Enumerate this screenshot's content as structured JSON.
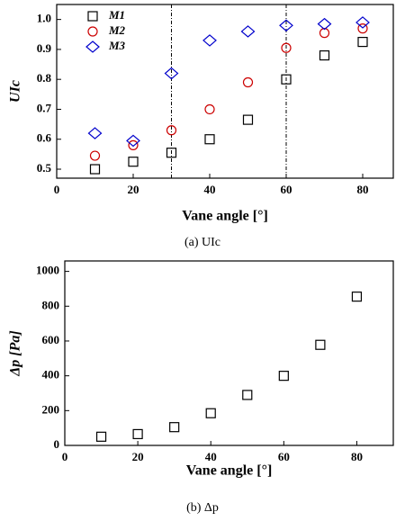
{
  "chart_data": [
    {
      "type": "scatter",
      "ylabel": "UIc",
      "xlabel": "Vane angle [°]",
      "caption": "(a)  UIc",
      "xlim": [
        0,
        88
      ],
      "xticks": [
        0,
        20,
        40,
        60,
        80
      ],
      "ylim": [
        0.47,
        1.05
      ],
      "yticks": [
        0.5,
        0.6,
        0.7,
        0.8,
        0.9,
        {
          "value": 1,
          "label": "1.0"
        }
      ],
      "vlines": [
        30,
        60
      ],
      "legend": "upper left",
      "x": [
        10,
        20,
        30,
        40,
        50,
        60,
        70,
        80
      ],
      "series": [
        {
          "name": "M1",
          "color": "#000000",
          "marker": "square",
          "values": [
            0.5,
            0.525,
            0.555,
            0.6,
            0.665,
            0.8,
            0.88,
            0.925
          ]
        },
        {
          "name": "M2",
          "color": "#cc0000",
          "marker": "circle",
          "values": [
            0.545,
            0.58,
            0.63,
            0.7,
            0.79,
            0.905,
            0.955,
            0.97
          ]
        },
        {
          "name": "M3",
          "color": "#0000cc",
          "marker": "diamond",
          "values": [
            0.62,
            0.595,
            0.82,
            0.93,
            0.96,
            0.98,
            0.985,
            0.99
          ]
        }
      ]
    },
    {
      "type": "scatter",
      "ylabel": "Δp [Pa]",
      "xlabel": "Vane angle [°]",
      "caption": "(b)  Δp",
      "xlim": [
        0,
        90
      ],
      "xticks": [
        0,
        20,
        40,
        60,
        80
      ],
      "ylim": [
        0,
        1060
      ],
      "yticks": [
        0,
        200,
        400,
        600,
        800,
        1000
      ],
      "x": [
        10,
        20,
        30,
        40,
        50,
        60,
        70,
        80
      ],
      "series": [
        {
          "color": "#000000",
          "marker": "square",
          "values": [
            50,
            65,
            105,
            185,
            290,
            400,
            578,
            855
          ]
        }
      ]
    }
  ]
}
